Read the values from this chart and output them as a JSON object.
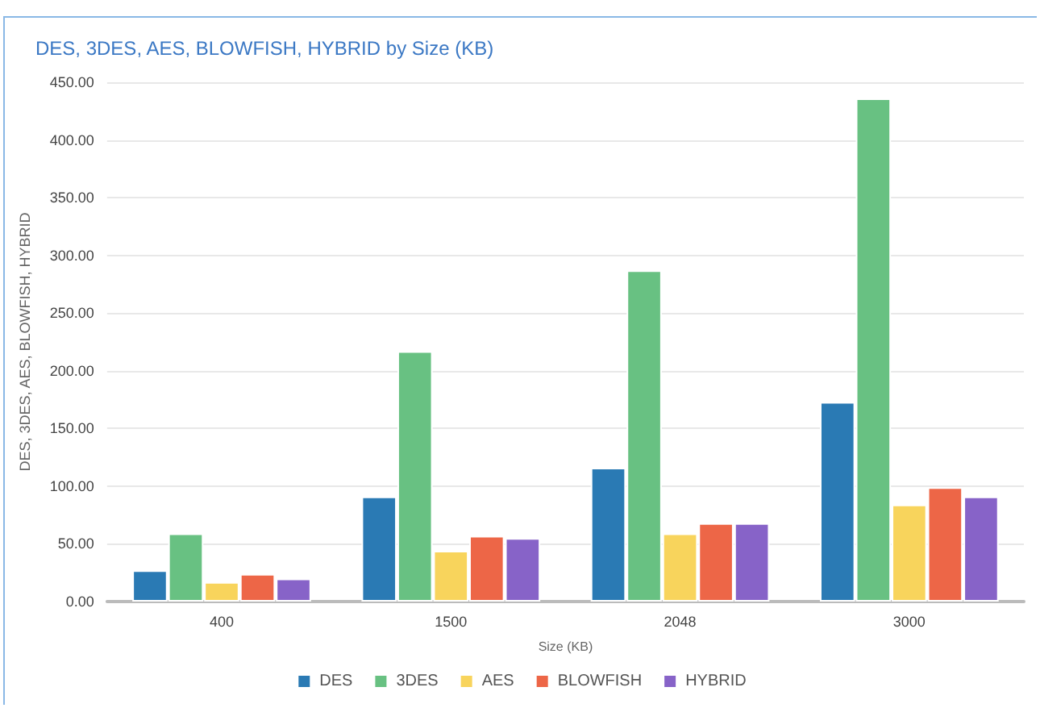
{
  "chart_data": {
    "type": "bar",
    "title": "DES, 3DES, AES, BLOWFISH, HYBRID by Size (KB)",
    "xlabel": "Size (KB)",
    "ylabel": "DES, 3DES, AES, BLOWFISH, HYBRID",
    "categories": [
      "400",
      "1500",
      "2048",
      "3000"
    ],
    "series": [
      {
        "name": "DES",
        "color": "#2a7ab4",
        "values": [
          27,
          91,
          116,
          173
        ]
      },
      {
        "name": "3DES",
        "color": "#68c182",
        "values": [
          59,
          217,
          287,
          436
        ]
      },
      {
        "name": "AES",
        "color": "#f8d45c",
        "values": [
          17,
          44,
          59,
          84
        ]
      },
      {
        "name": "BLOWFISH",
        "color": "#ed6647",
        "values": [
          24,
          57,
          68,
          99
        ]
      },
      {
        "name": "HYBRID",
        "color": "#8763c8",
        "values": [
          20,
          55,
          68,
          91
        ]
      }
    ],
    "ylim": [
      0,
      450
    ],
    "yticks": [
      {
        "value": 0,
        "label": "0.00"
      },
      {
        "value": 50,
        "label": "50.00"
      },
      {
        "value": 100,
        "label": "100.00"
      },
      {
        "value": 150,
        "label": "150.00"
      },
      {
        "value": 200,
        "label": "200.00"
      },
      {
        "value": 250,
        "label": "250.00"
      },
      {
        "value": 300,
        "label": "300.00"
      },
      {
        "value": 350,
        "label": "350.00"
      },
      {
        "value": 400,
        "label": "400.00"
      },
      {
        "value": 450,
        "label": "450.00"
      }
    ],
    "grid": "y",
    "legend": "bottom"
  }
}
